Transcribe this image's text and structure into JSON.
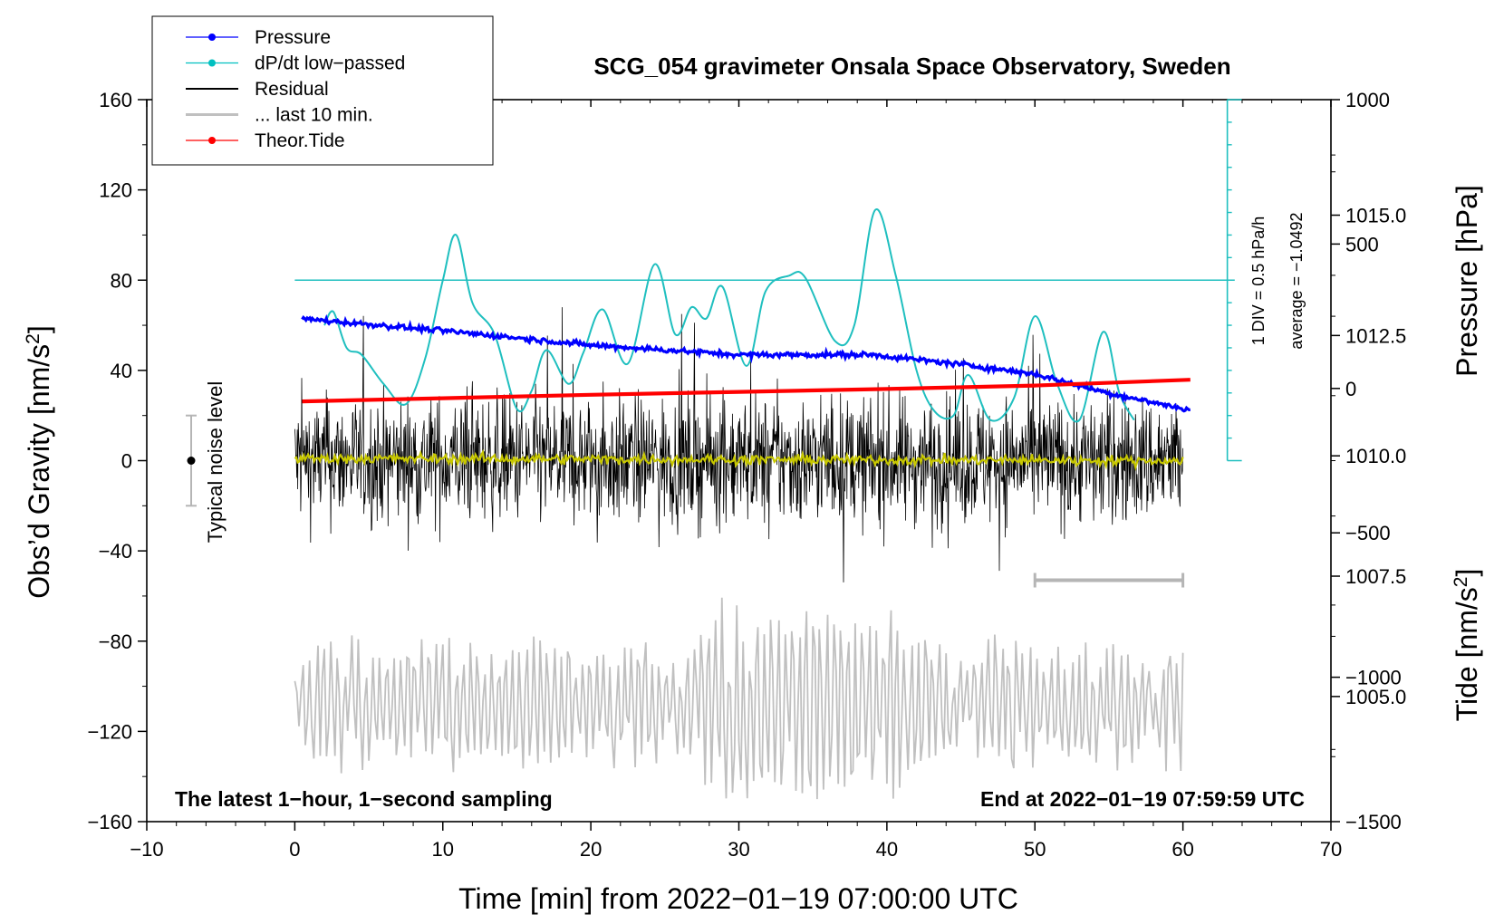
{
  "chart_data": {
    "type": "line",
    "title": "SCG_054 gravimeter Onsala Space Observatory, Sweden",
    "xlabel": "Time [min] from 2022−01−19 07:00:00 UTC",
    "ylabel_left": "Obs'd Gravity [nm/s²]",
    "ylabel_right_top": "Pressure [hPa]",
    "ylabel_right_bottom": "Tide [nm/s²]",
    "xlim": [
      -10,
      70
    ],
    "ylim": [
      -160,
      160
    ],
    "pressure_lim": [
      1002.4,
      1017.4
    ],
    "tide_lim": [
      -1500,
      1000
    ],
    "x_ticks": [
      "−10",
      "0",
      "10",
      "20",
      "30",
      "40",
      "50",
      "60",
      "70"
    ],
    "y_ticks": [
      "160",
      "120",
      "80",
      "40",
      "0",
      "−40",
      "−80",
      "−120",
      "−160"
    ],
    "pressure_ticks": [
      "1015.0",
      "1012.5",
      "1010.0",
      "1007.5",
      "1005.0"
    ],
    "tide_ticks": [
      "1000",
      "500",
      "0",
      "−500",
      "−1000",
      "−1500"
    ],
    "legend": [
      {
        "label": "Pressure",
        "color": "#0000ff",
        "marker": true
      },
      {
        "label": "dP/dt low−passed",
        "color": "#00c0c0",
        "marker": true
      },
      {
        "label": "Residual",
        "color": "#000000",
        "marker": false
      },
      {
        "label": "... last 10 min.",
        "color": "#c0c0c0",
        "marker": false
      },
      {
        "label": "Theor.Tide",
        "color": "#ff0000",
        "marker": true
      }
    ],
    "series": [
      {
        "name": "Pressure",
        "axis": "pressure_hPa",
        "color": "#0000ff",
        "x": [
          0.5,
          10,
          20,
          30,
          39,
          45,
          50,
          55,
          60.5
        ],
        "y": [
          1012.85,
          1012.6,
          1012.3,
          1012.1,
          1012.1,
          1011.9,
          1011.7,
          1011.3,
          1010.95
        ]
      },
      {
        "name": "dP/dt low−passed",
        "axis": "gravity_scale",
        "color": "#00c0c0",
        "x": [
          2,
          2.6,
          3.5,
          4.5,
          6,
          7.5,
          8.8,
          10,
          10.9,
          12,
          13.5,
          15,
          16,
          17,
          18.5,
          19.5,
          20.8,
          22.5,
          24.3,
          25.7,
          26.8,
          27.8,
          28.9,
          30.5,
          31.8,
          33.4,
          34.5,
          36.5,
          37.8,
          39.2,
          40.6,
          42,
          43.2,
          44.5,
          45.5,
          47,
          48.6,
          50,
          51.5,
          53,
          54.6,
          55.7,
          56.7
        ],
        "y": [
          60,
          66,
          50,
          47,
          34,
          25,
          45,
          80,
          100,
          70,
          56,
          23,
          31,
          49,
          34,
          48,
          67,
          43,
          87,
          56,
          68,
          63,
          77,
          42,
          75,
          82,
          81,
          53,
          60,
          111,
          82,
          40,
          22,
          20,
          38,
          18,
          28,
          64,
          34,
          18,
          57,
          30,
          18
        ]
      },
      {
        "name": "dP/dt reference (average)",
        "axis": "gravity_scale",
        "color": "#00c0c0",
        "x": [
          0,
          63.5
        ],
        "y": [
          80,
          80
        ]
      },
      {
        "name": "Residual",
        "axis": "gravity",
        "color": "#000000",
        "x": [
          0,
          60
        ],
        "y_range": [
          -62,
          68
        ],
        "note": "1-second samples, noise envelope about ±30 nm/s²"
      },
      {
        "name": "Residual low-passed",
        "axis": "gravity",
        "color": "#c8c800",
        "x": [
          0,
          60
        ],
        "y": [
          1,
          0
        ],
        "note": "smoothed residual near zero"
      },
      {
        "name": "... last 10 min.",
        "axis": "gravity_scale",
        "color": "#c0c0c0",
        "x": [
          0,
          60
        ],
        "y_range": [
          -150,
          -60
        ],
        "note": "last 10 minutes stretched over the full hour, centred near −108"
      },
      {
        "name": "Theor.Tide",
        "axis": "tide_nm_s2",
        "color": "#ff0000",
        "x": [
          0.5,
          10,
          20,
          30,
          40,
          50,
          60.5
        ],
        "y": [
          -45,
          -34,
          -22,
          -12,
          -2,
          10,
          30
        ]
      }
    ],
    "noise_bar": {
      "x": -7,
      "center": 0,
      "low": -20,
      "high": 20,
      "label": "Typical noise level"
    },
    "last10_bracket": {
      "x_start": 50,
      "x_end": 60,
      "y": -53
    },
    "dpdt_scale_bar": {
      "x": 63,
      "y_bottom": 0,
      "y_top": 160,
      "label_div": "1 DIV = 0.5 hPa/h",
      "label_avg": "average = −1.0492"
    },
    "annotations": {
      "left": "The latest 1−hour, 1−second sampling",
      "right": "End at 2022−01−19 07:59:59 UTC"
    }
  }
}
